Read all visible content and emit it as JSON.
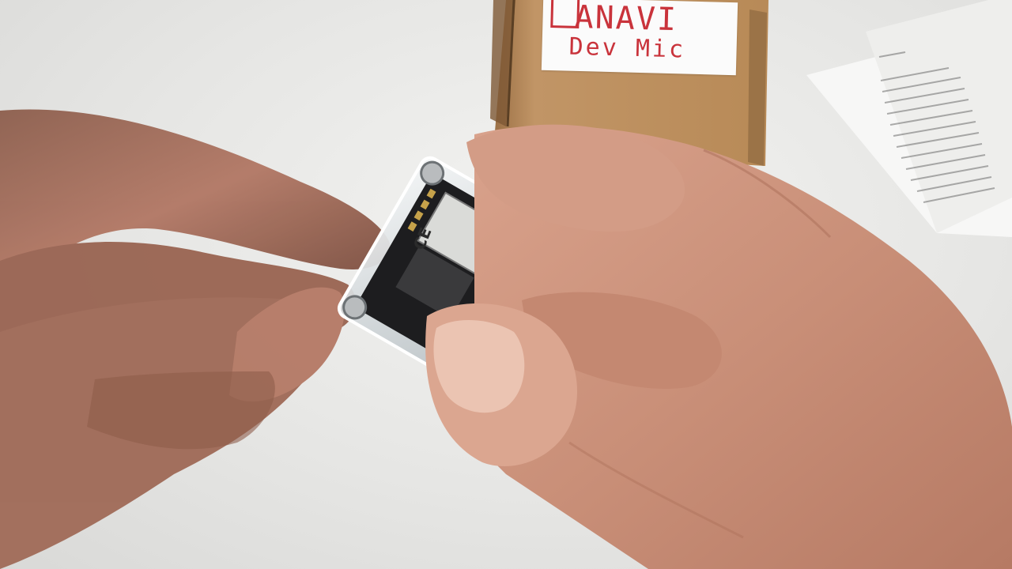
{
  "box_label": {
    "brand": "ANAVI",
    "product": "Dev Mic"
  },
  "pcb_marking": "CE",
  "colors": {
    "label_text": "#c9333b",
    "cardboard": "#b88a57",
    "skin": "#c98f78",
    "background": "#e9e9e7"
  }
}
